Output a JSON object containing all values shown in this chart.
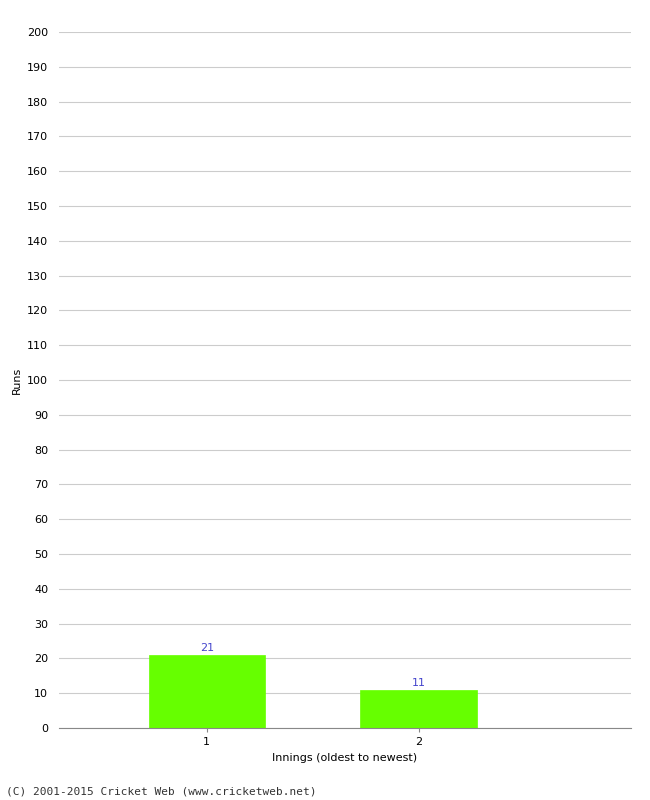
{
  "categories": [
    "1",
    "2"
  ],
  "values": [
    21,
    11
  ],
  "bar_color": "#66ff00",
  "bar_edge_color": "#66ff00",
  "ylabel": "Runs",
  "xlabel": "Innings (oldest to newest)",
  "ylim": [
    0,
    200
  ],
  "yticks": [
    0,
    10,
    20,
    30,
    40,
    50,
    60,
    70,
    80,
    90,
    100,
    110,
    120,
    130,
    140,
    150,
    160,
    170,
    180,
    190,
    200
  ],
  "value_label_color": "#4444cc",
  "value_label_fontsize": 8,
  "axis_label_fontsize": 8,
  "tick_label_fontsize": 8,
  "footer_text": "(C) 2001-2015 Cricket Web (www.cricketweb.net)",
  "footer_fontsize": 8,
  "background_color": "#ffffff",
  "grid_color": "#cccccc",
  "bar_width": 0.55,
  "x_positions": [
    1,
    2
  ],
  "xlim": [
    0.3,
    3.0
  ]
}
